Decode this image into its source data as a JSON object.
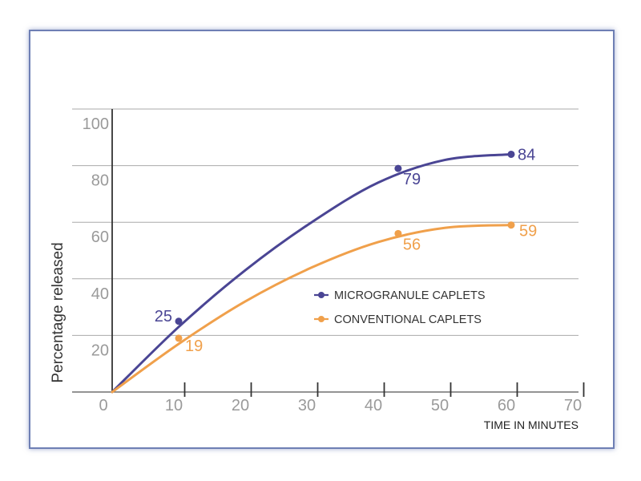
{
  "chart_data": {
    "type": "line",
    "title": "",
    "xlabel": "TIME IN MINUTES",
    "ylabel": "Percentage released",
    "xlim": [
      0,
      70
    ],
    "ylim": [
      0,
      100
    ],
    "x_ticks": [
      "0",
      "10",
      "20",
      "30",
      "40",
      "50",
      "60",
      "70"
    ],
    "y_ticks": [
      "20",
      "40",
      "60",
      "80",
      "100"
    ],
    "grid": true,
    "legend_position": "center-right",
    "series": [
      {
        "name": "MICROGRANULE CAPLETS",
        "color": "#4a4594",
        "curve_x": [
          0,
          10,
          20,
          30,
          40,
          50,
          60
        ],
        "curve_y": [
          0,
          23,
          43,
          60,
          74,
          82,
          84
        ],
        "points": [
          {
            "x": 10,
            "y": 25,
            "label": "25"
          },
          {
            "x": 43,
            "y": 79,
            "label": "79"
          },
          {
            "x": 60,
            "y": 84,
            "label": "84"
          }
        ]
      },
      {
        "name": "CONVENTIONAL CAPLETS",
        "color": "#f0a04b",
        "curve_x": [
          0,
          10,
          20,
          30,
          40,
          50,
          60
        ],
        "curve_y": [
          0,
          17,
          32,
          44,
          53,
          58,
          59
        ],
        "points": [
          {
            "x": 10,
            "y": 19,
            "label": "19"
          },
          {
            "x": 43,
            "y": 56,
            "label": "56"
          },
          {
            "x": 60,
            "y": 59,
            "label": "59"
          }
        ]
      }
    ]
  }
}
